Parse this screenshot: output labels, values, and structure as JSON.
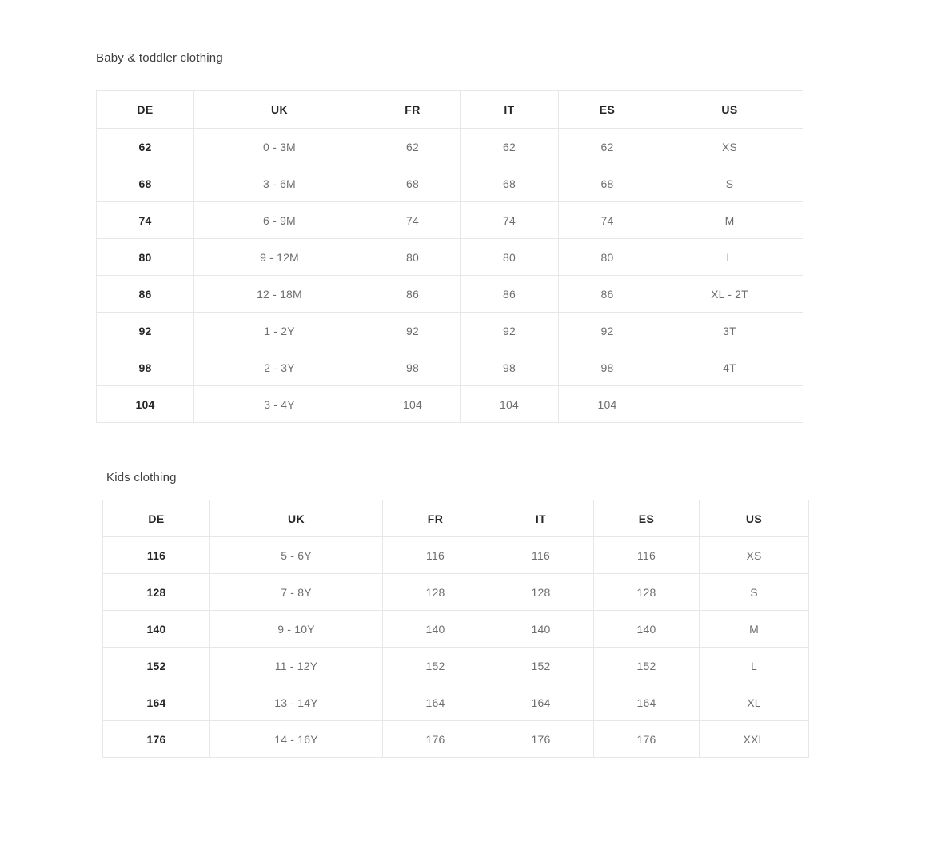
{
  "colors": {
    "title_text": "#3e3e3e",
    "primary_text": "#262626",
    "secondary_text": "#6e6e6e",
    "table_border": "#e7e7e7",
    "divider": "#e0e0e0",
    "background": "#ffffff"
  },
  "sections": [
    {
      "title": "Baby & toddler clothing",
      "headers": [
        "DE",
        "UK",
        "FR",
        "IT",
        "ES",
        "US"
      ],
      "rows": [
        [
          "62",
          "0 - 3M",
          "62",
          "62",
          "62",
          "XS"
        ],
        [
          "68",
          "3 - 6M",
          "68",
          "68",
          "68",
          "S"
        ],
        [
          "74",
          "6 - 9M",
          "74",
          "74",
          "74",
          "M"
        ],
        [
          "80",
          "9 - 12M",
          "80",
          "80",
          "80",
          "L"
        ],
        [
          "86",
          "12 - 18M",
          "86",
          "86",
          "86",
          "XL - 2T"
        ],
        [
          "92",
          "1 - 2Y",
          "92",
          "92",
          "92",
          "3T"
        ],
        [
          "98",
          "2 - 3Y",
          "98",
          "98",
          "98",
          "4T"
        ],
        [
          "104",
          "3 - 4Y",
          "104",
          "104",
          "104",
          ""
        ]
      ]
    },
    {
      "title": "Kids clothing",
      "headers": [
        "DE",
        "UK",
        "FR",
        "IT",
        "ES",
        "US"
      ],
      "rows": [
        [
          "116",
          "5 - 6Y",
          "116",
          "116",
          "116",
          "XS"
        ],
        [
          "128",
          "7 - 8Y",
          "128",
          "128",
          "128",
          "S"
        ],
        [
          "140",
          "9 - 10Y",
          "140",
          "140",
          "140",
          "M"
        ],
        [
          "152",
          "11 - 12Y",
          "152",
          "152",
          "152",
          "L"
        ],
        [
          "164",
          "13 - 14Y",
          "164",
          "164",
          "164",
          "XL"
        ],
        [
          "176",
          "14 - 16Y",
          "176",
          "176",
          "176",
          "XXL"
        ]
      ]
    }
  ]
}
